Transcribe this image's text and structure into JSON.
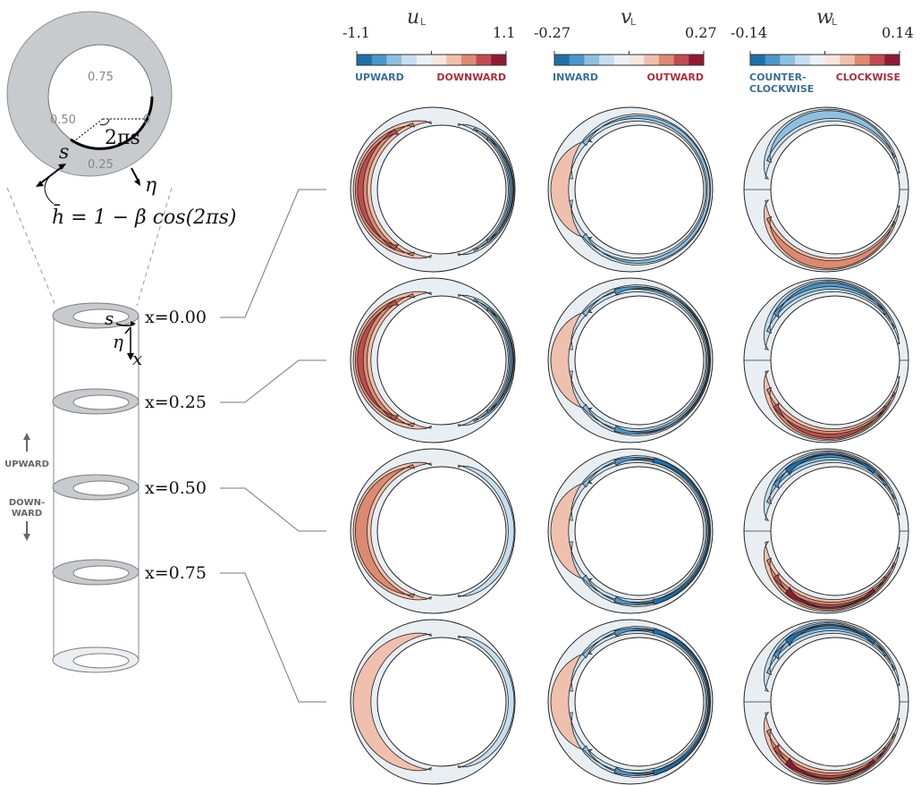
{
  "colorbars": [
    {
      "variable": "u",
      "subscript": "L",
      "min_label": "-1.1",
      "max_label": "1.1",
      "left_annotation": [
        "UPWARD"
      ],
      "right_annotation": [
        "DOWNWARD"
      ]
    },
    {
      "variable": "v",
      "subscript": "L",
      "min_label": "-0.27",
      "max_label": "0.27",
      "left_annotation": [
        "INWARD"
      ],
      "right_annotation": [
        "OUTWARD"
      ]
    },
    {
      "variable": "w",
      "subscript": "L",
      "min_label": "-0.14",
      "max_label": "0.14",
      "left_annotation": [
        "COUNTER-",
        "CLOCKWISE"
      ],
      "right_annotation": [
        "CLOCKWISE"
      ]
    }
  ],
  "colormap": [
    "#1f6fa8",
    "#4d96c8",
    "#8fc0e0",
    "#c6deee",
    "#ecf1f5",
    "#f5e6df",
    "#efc0ad",
    "#dc8a72",
    "#bf4c50",
    "#8e1b33"
  ],
  "annulus_inset": {
    "tick_labels": [
      "0.75",
      "0.50",
      "0",
      "0.25"
    ],
    "angle_label": "2πs",
    "s_label": "s",
    "eta_label": "η",
    "formula": "h̄ = 1 − β cos(2πs)"
  },
  "cylinder": {
    "s_label": "s",
    "eta_label": "η",
    "x_label": "x",
    "positions": [
      "x=0.00",
      "x=0.25",
      "x=0.50",
      "x=0.75"
    ],
    "up_label": "UPWARD",
    "down_label": [
      "DOWN-",
      "WARD"
    ]
  }
}
